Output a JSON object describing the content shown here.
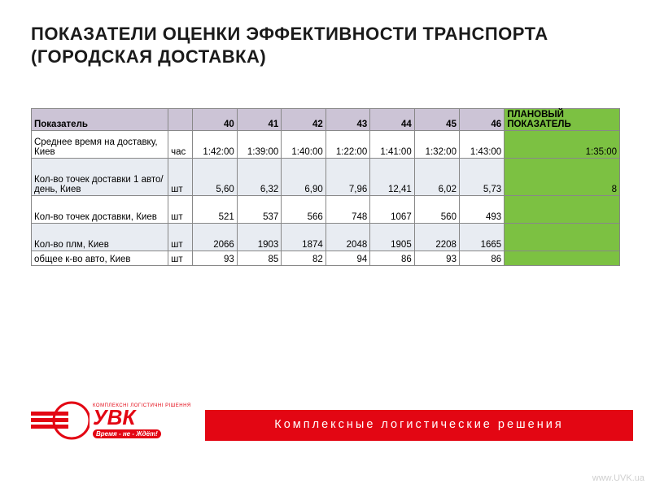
{
  "title": "ПОКАЗАТЕЛИ ОЦЕНКИ ЭФФЕКТИВНОСТИ ТРАНСПОРТА (ГОРОДСКАЯ ДОСТАВКА)",
  "table": {
    "header": {
      "metric": "Показатель",
      "unit": "",
      "weeks": [
        "40",
        "41",
        "42",
        "43",
        "44",
        "45",
        "46"
      ],
      "plan": "ПЛАНОВЫЙ ПОКАЗАТЕЛЬ"
    },
    "rows": [
      {
        "metric": "Среднее время на доставку, Киев",
        "unit": "час",
        "values": [
          "1:42:00",
          "1:39:00",
          "1:40:00",
          "1:22:00",
          "1:41:00",
          "1:32:00",
          "1:43:00"
        ],
        "plan": "1:35:00",
        "tall": true
      },
      {
        "metric": "Кол-во точек доставки 1 авто/день, Киев",
        "unit": "шт",
        "values": [
          "5,60",
          "6,32",
          "6,90",
          "7,96",
          "12,41",
          "6,02",
          "5,73"
        ],
        "plan": "8",
        "alt": true,
        "tall": true,
        "extraTall": true
      },
      {
        "metric": "Кол-во точек доставки, Киев",
        "unit": "шт",
        "values": [
          "521",
          "537",
          "566",
          "748",
          "1067",
          "560",
          "493"
        ],
        "plan": "",
        "tall": true
      },
      {
        "metric": "Кол-во плм, Киев",
        "unit": "шт",
        "values": [
          "2066",
          "1903",
          "1874",
          "2048",
          "1905",
          "2208",
          "1665"
        ],
        "plan": "",
        "alt": true,
        "tall": true
      },
      {
        "metric": "общее к-во авто, Киев",
        "unit": "шт",
        "values": [
          "93",
          "85",
          "82",
          "94",
          "86",
          "93",
          "86"
        ],
        "plan": ""
      }
    ],
    "colors": {
      "header_purple": "#ccc4d6",
      "header_green": "#7cc142",
      "alt_row": "#e8ecf2",
      "border": "#888888"
    }
  },
  "footer": {
    "tagline": "Комплексные логистические решения",
    "logo_small": "КОМПЛЕКСНІ ЛОГІСТИЧНІ РІШЕННЯ",
    "logo_text": "УВК",
    "logo_tag": "Время - не - Ждёт!",
    "site": "www.UVK.ua",
    "brand_color": "#e30613"
  }
}
